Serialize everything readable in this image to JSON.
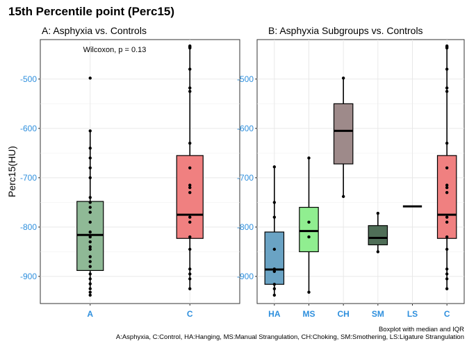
{
  "title": "15th Percentile point (Perc15)",
  "caption_line1": "Boxplot with median and IQR",
  "caption_line2": "A:Asphyxia, C:Control, HA:Hanging, MS:Manual Strangulation, CH:Choking, SM:Smothering, LS:Ligature Strangulation",
  "chart_data": [
    {
      "type": "box",
      "title": "A: Asphyxia vs. Controls",
      "ylabel": "Perc15(HU)",
      "xlabel": "",
      "ylim": [
        -955,
        -420
      ],
      "yticks": [
        -900,
        -800,
        -700,
        -600,
        -500
      ],
      "annotation": "Wilcoxon, p = 0.13",
      "categories": [
        "A",
        "C"
      ],
      "boxes": [
        {
          "name": "A",
          "color": "#8fb996",
          "whisker_low": -925,
          "q1": -888,
          "median": -816,
          "q3": -748,
          "whisker_high": -605,
          "points": [
            -498,
            -605,
            -640,
            -660,
            -680,
            -700,
            -740,
            -750,
            -760,
            -770,
            -790,
            -810,
            -820,
            -830,
            -840,
            -845,
            -860,
            -870,
            -880,
            -895,
            -905,
            -915,
            -925,
            -932,
            -938
          ]
        },
        {
          "name": "C",
          "color": "#f08080",
          "whisker_low": -925,
          "q1": -823,
          "median": -775,
          "q3": -655,
          "whisker_high": -435,
          "points": [
            -433,
            -435,
            -437,
            -480,
            -518,
            -525,
            -630,
            -680,
            -715,
            -720,
            -730,
            -780,
            -790,
            -820,
            -845,
            -885,
            -895,
            -905,
            -925
          ]
        }
      ]
    },
    {
      "type": "box",
      "title": "B: Asphyxia Subgroups vs. Controls",
      "ylabel": "",
      "xlabel": "",
      "ylim": [
        -955,
        -420
      ],
      "yticks": [
        -900,
        -800,
        -700,
        -600,
        -500
      ],
      "categories": [
        "HA",
        "MS",
        "CH",
        "SM",
        "LS",
        "C"
      ],
      "boxes": [
        {
          "name": "HA",
          "color": "#6aa3c4",
          "whisker_low": -938,
          "q1": -916,
          "median": -886,
          "q3": -810,
          "whisker_high": -678,
          "points": [
            -678,
            -750,
            -780,
            -845,
            -885,
            -890,
            -916,
            -925,
            -938
          ]
        },
        {
          "name": "MS",
          "color": "#90ee90",
          "whisker_low": -932,
          "q1": -850,
          "median": -808,
          "q3": -760,
          "whisker_high": -660,
          "points": [
            -660,
            -790,
            -820,
            -932
          ]
        },
        {
          "name": "CH",
          "color": "#9e8a8a",
          "whisker_low": -738,
          "q1": -672,
          "median": -605,
          "q3": -550,
          "whisker_high": -498,
          "points": [
            -498,
            -738
          ]
        },
        {
          "name": "SM",
          "color": "#4f6e57",
          "whisker_low": -850,
          "q1": -836,
          "median": -822,
          "q3": -797,
          "whisker_high": -772,
          "points": [
            -772,
            -850
          ]
        },
        {
          "name": "LS",
          "color": "#666666",
          "whisker_low": -758,
          "q1": -758,
          "median": -758,
          "q3": -758,
          "whisker_high": -758,
          "points": []
        },
        {
          "name": "C",
          "color": "#f08080",
          "whisker_low": -925,
          "q1": -823,
          "median": -775,
          "q3": -655,
          "whisker_high": -435,
          "points": [
            -433,
            -435,
            -437,
            -480,
            -518,
            -525,
            -630,
            -680,
            -715,
            -720,
            -730,
            -780,
            -790,
            -820,
            -845,
            -885,
            -895,
            -905,
            -925
          ]
        }
      ]
    }
  ]
}
